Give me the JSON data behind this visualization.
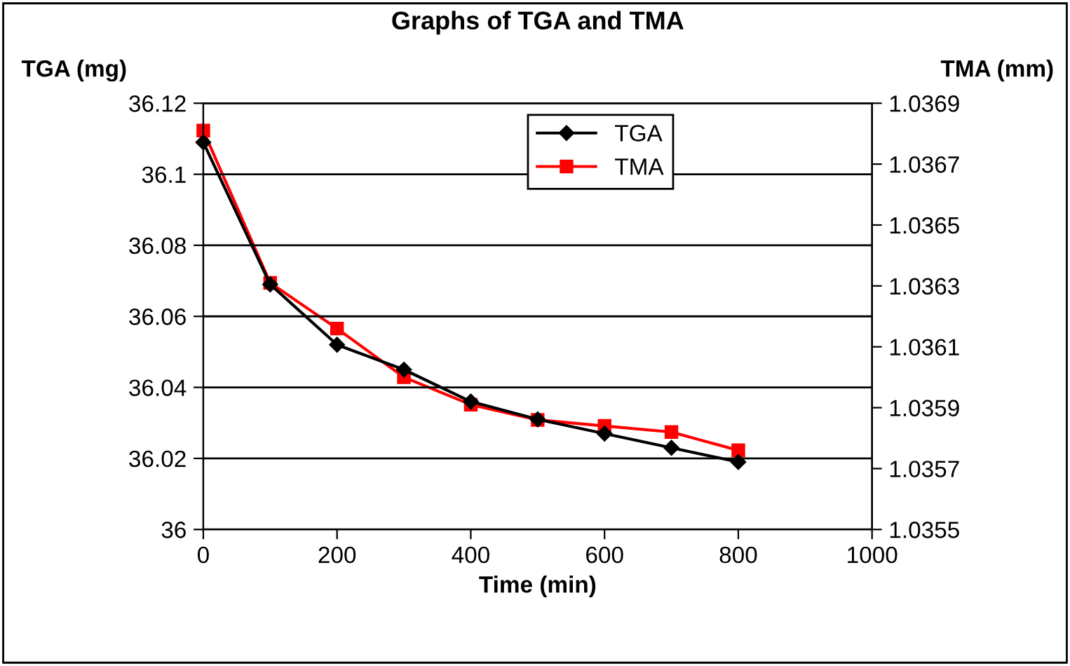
{
  "chart_data": {
    "type": "line",
    "title": "Graphs of TGA and TMA",
    "xlabel": "Time (min)",
    "ylabel": "TGA (mg)",
    "y2label": "TMA (mm)",
    "x": [
      0,
      100,
      200,
      300,
      400,
      500,
      600,
      700,
      800
    ],
    "series": [
      {
        "name": "TGA",
        "color": "#000000",
        "marker": "diamond",
        "values": [
          36.109,
          36.069,
          36.052,
          36.045,
          36.036,
          36.031,
          36.027,
          36.023,
          36.019
        ]
      },
      {
        "name": "TMA",
        "color": "#ff0000",
        "marker": "square",
        "axis": "y2",
        "values": [
          1.03681,
          1.03631,
          1.03616,
          1.036,
          1.03591,
          1.03586,
          1.03584,
          1.03582,
          1.03576
        ]
      }
    ],
    "xlim": [
      0,
      1000
    ],
    "xticks": [
      0,
      200,
      400,
      600,
      800,
      1000
    ],
    "ylim": [
      36,
      36.12
    ],
    "yticks": [
      {
        "value": 36,
        "label": "36"
      },
      {
        "value": 36.02,
        "label": "36.02"
      },
      {
        "value": 36.04,
        "label": "36.04"
      },
      {
        "value": 36.06,
        "label": "36.06"
      },
      {
        "value": 36.08,
        "label": "36.08"
      },
      {
        "value": 36.1,
        "label": "36.1"
      },
      {
        "value": 36.12,
        "label": "36.12"
      }
    ],
    "y2lim": [
      1.0355,
      1.0369
    ],
    "y2ticks": [
      {
        "value": 1.0355,
        "label": "1.0355"
      },
      {
        "value": 1.0357,
        "label": "1.0357"
      },
      {
        "value": 1.0359,
        "label": "1.0359"
      },
      {
        "value": 1.0361,
        "label": "1.0361"
      },
      {
        "value": 1.0363,
        "label": "1.0363"
      },
      {
        "value": 1.0365,
        "label": "1.0365"
      },
      {
        "value": 1.0367,
        "label": "1.0367"
      },
      {
        "value": 1.0369,
        "label": "1.0369"
      }
    ],
    "grid": "y",
    "legend": "top right",
    "line_style": "solid"
  }
}
